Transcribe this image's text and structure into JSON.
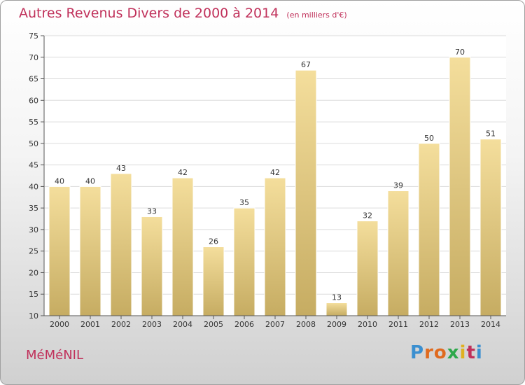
{
  "title": "Autres Revenus Divers de 2000 à 2014",
  "subtitle": "(en milliers d'€)",
  "commune": "MéMéNIL",
  "logo": "Proxiti",
  "colors": {
    "title": "#c0305a",
    "bar_top": "#f4de9c",
    "bar_bottom": "#c6ac62"
  },
  "chart_data": {
    "type": "bar",
    "title": "Autres Revenus Divers de 2000 à 2014",
    "subtitle": "(en milliers d'€)",
    "categories": [
      "2000",
      "2001",
      "2002",
      "2003",
      "2004",
      "2005",
      "2006",
      "2007",
      "2008",
      "2009",
      "2010",
      "2011",
      "2012",
      "2013",
      "2014"
    ],
    "values": [
      40,
      40,
      43,
      33,
      42,
      26,
      35,
      42,
      67,
      13,
      32,
      39,
      50,
      70,
      51
    ],
    "ylim": [
      10,
      75
    ],
    "yticks": [
      10,
      15,
      20,
      25,
      30,
      35,
      40,
      45,
      50,
      55,
      60,
      65,
      70,
      75
    ],
    "grid": true,
    "xlabel": "",
    "ylabel": ""
  }
}
